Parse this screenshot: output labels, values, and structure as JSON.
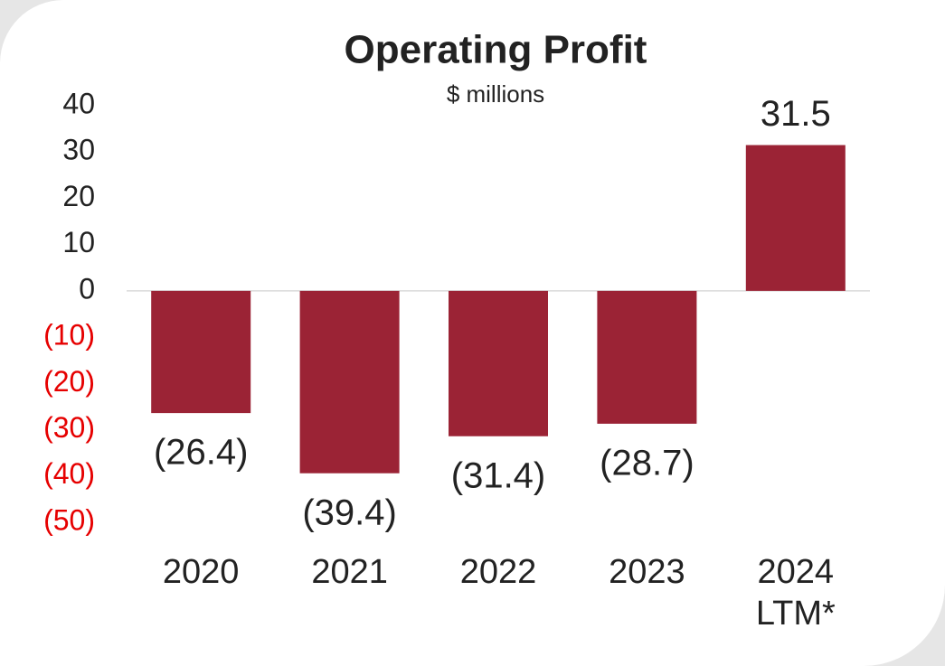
{
  "chart_data": {
    "type": "bar",
    "title": "Operating Profit",
    "subtitle": "$ millions",
    "categories": [
      "2020",
      "2021",
      "2022",
      "2023",
      "2024 LTM*"
    ],
    "values": [
      -26.4,
      -39.4,
      -31.4,
      -28.7,
      31.5
    ],
    "value_labels": [
      "(26.4)",
      "(39.4)",
      "(31.4)",
      "(28.7)",
      "31.5"
    ],
    "color": "#9b2335",
    "negative_tick_color": "#e60000",
    "ylim": [
      -50,
      40
    ],
    "yticks": [
      40,
      30,
      20,
      10,
      0,
      {
        "value": -10,
        "label": "(10)"
      },
      {
        "value": -20,
        "label": "(20)"
      },
      {
        "value": -30,
        "label": "(30)"
      },
      {
        "value": -40,
        "label": "(40)"
      },
      {
        "value": -50,
        "label": "(50)"
      }
    ],
    "grid": false
  }
}
